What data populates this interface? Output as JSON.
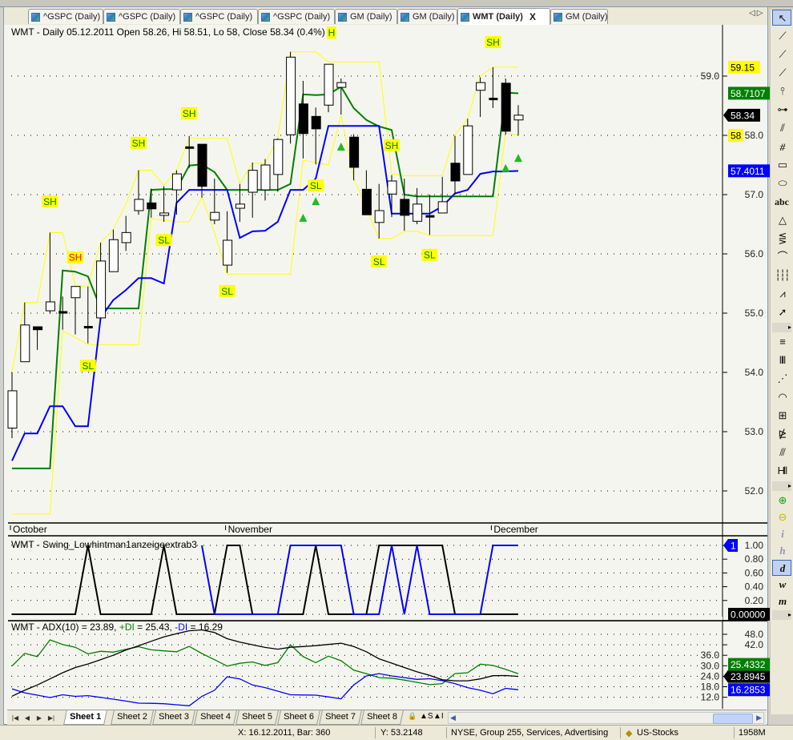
{
  "tabs": [
    {
      "label": "^GSPC (Daily)"
    },
    {
      "label": "^GSPC (Daily)"
    },
    {
      "label": "^GSPC (Daily)"
    },
    {
      "label": "^GSPC (Daily)"
    },
    {
      "label": "GM (Daily)"
    },
    {
      "label": "GM (Daily)"
    },
    {
      "label": "WMT (Daily)",
      "active": true,
      "close": "X"
    },
    {
      "label": "GM (Daily)"
    }
  ],
  "tab_scroll": "◁▷",
  "sheets": {
    "items": [
      "Sheet 1",
      "Sheet 2",
      "Sheet 3",
      "Sheet 4",
      "Sheet 5",
      "Sheet 6",
      "Sheet 7",
      "Sheet 8"
    ],
    "active": 0,
    "nav": [
      "|◀",
      "◀",
      "▶",
      "▶|"
    ],
    "lock": "🔒",
    "scale_s": "▲S",
    "scale_i": "▲I"
  },
  "status": {
    "cursor": "X: 16.12.2011, Bar: 360",
    "y_value": "Y: 53.2148",
    "info": "NYSE, Group 255, Services, Advertising",
    "database": "US-Stocks",
    "memory": "1958M"
  },
  "toolbar": [
    {
      "icon": "pointer-icon",
      "glyph": "↖",
      "selected": true
    },
    {
      "icon": "line-icon",
      "glyph": "⟋"
    },
    {
      "icon": "ray-icon",
      "glyph": "⟋"
    },
    {
      "icon": "extended-line-icon",
      "glyph": "⟋"
    },
    {
      "icon": "vertical-line-icon",
      "glyph": "⫯"
    },
    {
      "icon": "horizontal-line-icon",
      "glyph": "⊶"
    },
    {
      "icon": "parallel-lines-icon",
      "glyph": "⫽"
    },
    {
      "icon": "channel-icon",
      "glyph": "⧣"
    },
    {
      "icon": "rectangle-icon",
      "glyph": "▭"
    },
    {
      "icon": "ellipse-icon",
      "glyph": "⬭"
    },
    {
      "icon": "text-icon",
      "glyph": "abc"
    },
    {
      "icon": "triangle-icon",
      "glyph": "△"
    },
    {
      "icon": "andrews-pitchfork-icon",
      "glyph": "⋚"
    },
    {
      "icon": "arc-icon",
      "glyph": "⌒"
    },
    {
      "icon": "cycles-icon",
      "glyph": "┆┆┆"
    },
    {
      "icon": "zigzag-icon",
      "glyph": "⩘"
    },
    {
      "icon": "arrow-icon",
      "glyph": "➚"
    },
    {
      "icon": "fib-retracement-icon",
      "glyph": "≡"
    },
    {
      "icon": "fib-timezones-icon",
      "glyph": "‖‖"
    },
    {
      "icon": "fib-fan-icon",
      "glyph": "⋰"
    },
    {
      "icon": "fib-arcs-icon",
      "glyph": "◠"
    },
    {
      "icon": "gann-square-icon",
      "glyph": "⊞"
    },
    {
      "icon": "gann-fan-icon",
      "glyph": "⋭"
    },
    {
      "icon": "fib-extension-icon",
      "glyph": "⫻"
    },
    {
      "icon": "cycle-lines-icon",
      "glyph": "H‖"
    },
    {
      "icon": "zoom-in-icon",
      "glyph": "⊕",
      "color": "#14a014"
    },
    {
      "icon": "zoom-out-icon",
      "glyph": "⊖",
      "color": "#c8b400"
    },
    {
      "icon": "interval-intraday-icon",
      "glyph": "i"
    },
    {
      "icon": "interval-hourly-icon",
      "glyph": "h"
    },
    {
      "icon": "interval-daily-icon",
      "glyph": "d",
      "selected": true
    },
    {
      "icon": "interval-weekly-icon",
      "glyph": "w"
    },
    {
      "icon": "interval-monthly-icon",
      "glyph": "m"
    }
  ],
  "chart_data": {
    "header": "WMT - Daily 05.12.2011 Open 58.26, Hi 58.51, Lo 58, Close 58.34 (0.4%)",
    "months": [
      {
        "label": "October",
        "bar": 0
      },
      {
        "label": "November",
        "bar": 17
      },
      {
        "label": "December",
        "bar": 38
      }
    ],
    "price_pane": {
      "type": "candlestick",
      "ylim": [
        51.5,
        59.6
      ],
      "ticks": [
        "52.0",
        "53.0",
        "54.0",
        "55.0",
        "56.0",
        "57.0",
        "58.0",
        "59.0"
      ],
      "candles": [
        [
          53.06,
          54.0,
          52.89,
          53.69
        ],
        [
          54.18,
          55.18,
          54.18,
          54.8
        ],
        [
          54.77,
          54.77,
          54.38,
          54.72
        ],
        [
          55.04,
          56.36,
          54.99,
          55.19
        ],
        [
          55.02,
          55.28,
          54.72,
          55.02
        ],
        [
          55.26,
          55.45,
          54.64,
          55.45
        ],
        [
          54.77,
          55.45,
          54.49,
          54.77
        ],
        [
          54.92,
          56.19,
          54.9,
          55.88
        ],
        [
          55.7,
          56.41,
          55.7,
          56.24
        ],
        [
          56.19,
          56.64,
          56.05,
          56.36
        ],
        [
          56.73,
          57.41,
          56.66,
          56.92
        ],
        [
          56.86,
          57.1,
          56.61,
          56.76
        ],
        [
          56.65,
          57.14,
          56.54,
          56.69
        ],
        [
          57.08,
          57.41,
          56.66,
          57.35
        ],
        [
          57.8,
          57.99,
          57.45,
          57.8
        ],
        [
          57.85,
          57.85,
          56.95,
          57.14
        ],
        [
          56.57,
          57.27,
          56.5,
          56.7
        ],
        [
          55.81,
          56.72,
          55.68,
          56.23
        ],
        [
          56.77,
          57.18,
          56.54,
          56.84
        ],
        [
          57.04,
          57.54,
          56.61,
          57.41
        ],
        [
          57.08,
          57.6,
          56.9,
          57.5
        ],
        [
          57.34,
          57.95,
          57.05,
          57.93
        ],
        [
          58.01,
          59.41,
          57.86,
          59.32
        ],
        [
          58.53,
          58.92,
          57.61,
          58.03
        ],
        [
          58.32,
          58.47,
          57.51,
          58.11
        ],
        [
          58.51,
          59.2,
          58.39,
          59.2
        ],
        [
          58.81,
          58.96,
          58.35,
          58.89
        ],
        [
          57.97,
          58.02,
          57.24,
          57.46
        ],
        [
          57.09,
          57.41,
          56.66,
          56.66
        ],
        [
          56.53,
          57.18,
          56.26,
          56.73
        ],
        [
          57.01,
          57.33,
          56.62,
          57.23
        ],
        [
          56.92,
          57.27,
          56.39,
          56.65
        ],
        [
          56.55,
          57.11,
          56.5,
          56.84
        ],
        [
          56.64,
          57.0,
          56.32,
          56.64
        ],
        [
          56.69,
          57.3,
          56.69,
          56.88
        ],
        [
          57.53,
          57.99,
          57.0,
          57.23
        ],
        [
          57.34,
          58.28,
          57.34,
          58.16
        ],
        [
          58.76,
          58.98,
          58.31,
          58.89
        ],
        [
          58.62,
          59.15,
          58.46,
          58.62
        ],
        [
          58.88,
          58.96,
          58.01,
          58.07
        ],
        [
          58.26,
          58.51,
          58.0,
          58.34
        ]
      ],
      "upper_band": [
        54.0,
        55.18,
        55.18,
        56.36,
        56.36,
        55.46,
        55.46,
        56.19,
        56.41,
        56.84,
        57.41,
        57.41,
        57.15,
        57.41,
        57.95,
        57.95,
        57.95,
        57.95,
        57.19,
        57.53,
        57.53,
        57.95,
        59.41,
        59.41,
        59.41,
        59.24,
        59.24,
        59.24,
        59.24,
        59.24,
        57.35,
        57.32,
        57.32,
        57.32,
        57.32,
        58.01,
        58.28,
        59.0,
        59.15,
        59.15,
        59.15
      ],
      "lower_band": [
        51.61,
        51.61,
        51.61,
        51.61,
        54.7,
        54.59,
        54.47,
        54.47,
        54.47,
        54.47,
        54.47,
        56.59,
        56.57,
        56.54,
        56.54,
        56.96,
        56.36,
        55.66,
        55.66,
        55.66,
        55.66,
        55.66,
        55.66,
        57.58,
        57.54,
        57.5,
        58.34,
        57.28,
        56.77,
        56.26,
        56.26,
        56.38,
        56.38,
        56.31,
        56.31,
        56.31,
        56.31,
        56.31,
        56.31,
        58.04,
        58.01
      ],
      "green_line": [
        52.38,
        52.38,
        52.38,
        52.38,
        55.72,
        55.7,
        55.62,
        55.08,
        55.08,
        55.08,
        55.08,
        57.08,
        57.09,
        57.09,
        57.49,
        57.51,
        57.38,
        57.08,
        57.08,
        57.08,
        57.08,
        57.08,
        57.18,
        58.69,
        58.68,
        58.69,
        58.82,
        58.46,
        58.26,
        58.15,
        58.09,
        57.0,
        56.97,
        56.97,
        56.97,
        56.97,
        56.97,
        56.97,
        56.97,
        58.72,
        58.71
      ],
      "blue_line": [
        52.51,
        52.97,
        52.97,
        53.43,
        53.43,
        53.09,
        53.09,
        54.92,
        55.22,
        55.39,
        55.59,
        55.59,
        55.5,
        56.86,
        57.08,
        57.08,
        57.08,
        57.08,
        56.27,
        56.38,
        56.39,
        56.54,
        57.08,
        57.08,
        57.27,
        58.16,
        58.16,
        58.16,
        58.16,
        58.16,
        56.68,
        56.68,
        56.68,
        56.68,
        56.8,
        57.02,
        57.08,
        57.35,
        57.39,
        57.39,
        57.4
      ],
      "labels": [
        {
          "text": "SH",
          "bar": 3,
          "price": 56.89,
          "color": "#008000"
        },
        {
          "text": "SH",
          "bar": 5,
          "price": 55.95,
          "color": "#ff0000"
        },
        {
          "text": "SL",
          "bar": 6,
          "price": 54.12,
          "color": "#008000"
        },
        {
          "text": "SH",
          "bar": 10,
          "price": 57.88,
          "color": "#008000"
        },
        {
          "text": "SL",
          "bar": 12,
          "price": 56.24,
          "color": "#008000"
        },
        {
          "text": "SH",
          "bar": 14,
          "price": 58.38,
          "color": "#008000"
        },
        {
          "text": "SL",
          "bar": 17,
          "price": 55.38,
          "color": "#008000"
        },
        {
          "text": "SL",
          "bar": 24,
          "price": 57.16,
          "color": "#008000"
        },
        {
          "text": "H",
          "bar": 25,
          "price": 59.74,
          "color": "#008000"
        },
        {
          "text": "SL",
          "bar": 29,
          "price": 55.88,
          "color": "#008000"
        },
        {
          "text": "SH",
          "bar": 30,
          "price": 57.84,
          "color": "#008000"
        },
        {
          "text": "SL",
          "bar": 33,
          "price": 55.99,
          "color": "#008000"
        },
        {
          "text": "SH",
          "bar": 38,
          "price": 59.58,
          "color": "#008000"
        }
      ],
      "buy_arrows": [
        {
          "bar": 23,
          "price": 56.61
        },
        {
          "bar": 24,
          "price": 56.89
        },
        {
          "bar": 26,
          "price": 57.81
        },
        {
          "bar": 39,
          "price": 57.45
        },
        {
          "bar": 40,
          "price": 57.62
        }
      ],
      "badges": [
        {
          "text": "59.15",
          "value": 59.15,
          "bg": "#ffff00",
          "fg": "#000000"
        },
        {
          "text": "58.7107",
          "value": 58.7107,
          "bg": "#008000",
          "fg": "#ffffff"
        },
        {
          "text": "58.34",
          "value": 58.34,
          "bg": "#000000",
          "fg": "#ffffff",
          "arrow": true
        },
        {
          "text": "58",
          "value": 58.0,
          "bg": "#ffff00",
          "fg": "#000000"
        },
        {
          "text": "57.4011",
          "value": 57.4011,
          "bg": "#0000ff",
          "fg": "#ffffff"
        }
      ]
    },
    "swing_pane": {
      "title": "WMT - Swing_Lowhintman1anzeigeextrab3",
      "type": "line",
      "ylim": [
        0,
        1
      ],
      "ticks": [
        "0.20",
        "0.40",
        "0.60",
        "0.80",
        "1.00"
      ],
      "black": [
        0,
        0,
        0,
        0,
        0,
        0,
        1,
        0,
        0,
        0,
        0,
        0,
        1,
        0,
        0,
        0,
        0,
        1,
        1,
        0,
        0,
        0,
        0,
        0,
        1,
        0,
        0,
        0,
        0,
        1,
        1,
        1,
        1,
        1,
        1,
        0,
        0,
        0,
        0,
        0,
        0
      ],
      "blue": [
        null,
        null,
        null,
        null,
        null,
        null,
        null,
        null,
        null,
        null,
        null,
        null,
        null,
        null,
        null,
        1,
        0,
        0,
        0,
        0,
        0,
        0,
        1,
        1,
        1,
        1,
        1,
        0,
        0,
        0,
        1,
        0,
        1,
        0,
        0,
        0,
        0,
        0,
        1,
        1,
        1
      ],
      "badges": [
        {
          "text": "1",
          "value": 1,
          "bg": "#0000ff",
          "fg": "#ffffff",
          "arrow": true
        },
        {
          "text": "0.00000",
          "value": 0,
          "bg": "#000000",
          "fg": "#ffffff"
        }
      ]
    },
    "adx_pane": {
      "title_parts": [
        {
          "text": "WMT - ADX(10) = 23.89, ",
          "color": "#000000"
        },
        {
          "text": "+DI",
          "color": "#008000"
        },
        {
          "text": " = 25.43, ",
          "color": "#000000"
        },
        {
          "text": "-DI",
          "color": "#0000ff"
        },
        {
          "text": " = 16.29",
          "color": "#000000"
        }
      ],
      "type": "line",
      "ticks": [
        "12.0",
        "18.0",
        "24.0",
        "30.0",
        "36.0",
        "42.0",
        "48.0"
      ],
      "adx": [
        12.6,
        16,
        19,
        22.5,
        26,
        29,
        31,
        33.5,
        36,
        39,
        41.4,
        44,
        46.5,
        48.3,
        50,
        50.5,
        49,
        45.5,
        43.5,
        42,
        40.5,
        39.5,
        40.6,
        41,
        41.5,
        42.2,
        42.9,
        41,
        38,
        34,
        31.5,
        29,
        26.5,
        24.5,
        22,
        21.4,
        21.4,
        22.5,
        24.3,
        24.4,
        23.89
      ],
      "plus_di": [
        29.8,
        37.1,
        35.2,
        44.8,
        42.2,
        40.6,
        36.8,
        38.3,
        37.8,
        39.4,
        40.9,
        39.1,
        38.5,
        38,
        41.1,
        37,
        33.5,
        29.8,
        31.4,
        32.2,
        30.2,
        31.8,
        42,
        35.2,
        31.8,
        35.5,
        32.9,
        27.5,
        25.5,
        23.2,
        22.9,
        21.8,
        20.5,
        19.2,
        19.8,
        25.5,
        26,
        30.9,
        30.2,
        28,
        25.43
      ],
      "minus_di": [
        16.8,
        14.5,
        13.2,
        11.8,
        13.4,
        12.5,
        12.9,
        11.9,
        10.9,
        9.8,
        8.6,
        8.5,
        8.3,
        7.7,
        7.1,
        12.5,
        16,
        23.7,
        22.5,
        19,
        17.5,
        15.5,
        13.4,
        13.3,
        13.2,
        12.2,
        11.1,
        19,
        24.2,
        25.5,
        24.2,
        23.2,
        22.2,
        22.6,
        21.5,
        19.8,
        17.5,
        16,
        14,
        17.1,
        16.29
      ],
      "badges": [
        {
          "text": "25.4332",
          "value": 25.4332,
          "bg": "#008000",
          "fg": "#ffffff"
        },
        {
          "text": "23.8945",
          "value": 23.8945,
          "bg": "#000000",
          "fg": "#ffffff",
          "arrow": true
        },
        {
          "text": "16.2853",
          "value": 16.2853,
          "bg": "#0000ff",
          "fg": "#ffffff"
        }
      ]
    },
    "colors": {
      "band": "#ffff00",
      "green": "#008000",
      "blue": "#0000ff",
      "signal_arrow": "#22bb22",
      "background": "#f5f5ef"
    }
  }
}
